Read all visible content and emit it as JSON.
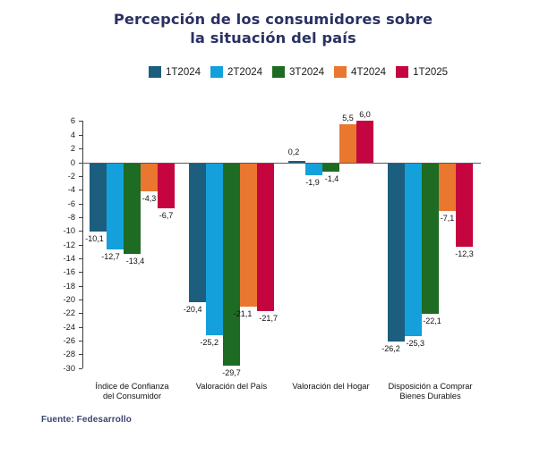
{
  "page": {
    "background": "#ffffff",
    "title_color": "#2a3163",
    "footer_color": "#3a4570",
    "axis_color": "#404040",
    "zero_line_color": "#595959",
    "label_color": "#111111"
  },
  "title": {
    "line1": "Percepción de los consumidores sobre",
    "line2": "la situación del país"
  },
  "footer": {
    "source": "Fuente: Fedesarrollo"
  },
  "chart_data": {
    "type": "bar",
    "title": "Percepción de los consumidores sobre la situación del país",
    "categories": [
      "Índice de Confianza\ndel Consumidor",
      "Valoración del País",
      "Valoración del Hogar",
      "Disposición a Comprar\nBienes Durables"
    ],
    "series": [
      {
        "name": "1T2024",
        "color": "#1b5e7e",
        "values": [
          -10.1,
          -20.4,
          0.2,
          -26.2
        ]
      },
      {
        "name": "2T2024",
        "color": "#14a0da",
        "values": [
          -12.7,
          -25.2,
          -1.9,
          -25.3
        ]
      },
      {
        "name": "3T2024",
        "color": "#1e6b24",
        "values": [
          -13.4,
          -29.7,
          -1.4,
          -22.1
        ]
      },
      {
        "name": "4T2024",
        "color": "#e9772f",
        "values": [
          -4.3,
          -21.1,
          5.5,
          -7.1
        ]
      },
      {
        "name": "1T2025",
        "color": "#c4053f",
        "values": [
          -6.7,
          -21.7,
          6.0,
          -12.3
        ]
      }
    ],
    "ylim": [
      -30,
      6
    ],
    "yticks": [
      6,
      4,
      2,
      0,
      -2,
      -4,
      -6,
      -8,
      -10,
      -12,
      -14,
      -16,
      -18,
      -20,
      -22,
      -24,
      -26,
      -28,
      -30
    ],
    "decimal_separator": ",",
    "data_labels": true,
    "grid": false,
    "legend_position": "top",
    "xlabel": "",
    "ylabel": "",
    "source": "Fuente: Fedesarrollo"
  }
}
